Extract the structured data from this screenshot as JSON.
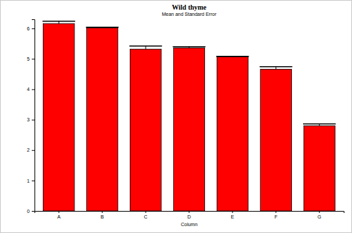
{
  "chart_data": {
    "type": "bar",
    "title": "Wild thyme",
    "subtitle": "Mean and Standard Error",
    "x_label": "Column",
    "categories": [
      "A",
      "B",
      "C",
      "D",
      "E",
      "F",
      "G"
    ],
    "values": [
      6.16,
      6.02,
      5.32,
      5.36,
      5.07,
      4.66,
      2.8
    ],
    "errors": [
      0.08,
      0.02,
      0.1,
      0.04,
      0.01,
      0.08,
      0.06
    ],
    "color": "#ff0000",
    "ylim": [
      0,
      6.3
    ],
    "yticks": [
      0,
      1,
      2,
      3,
      4,
      5,
      6
    ],
    "grid": false
  }
}
